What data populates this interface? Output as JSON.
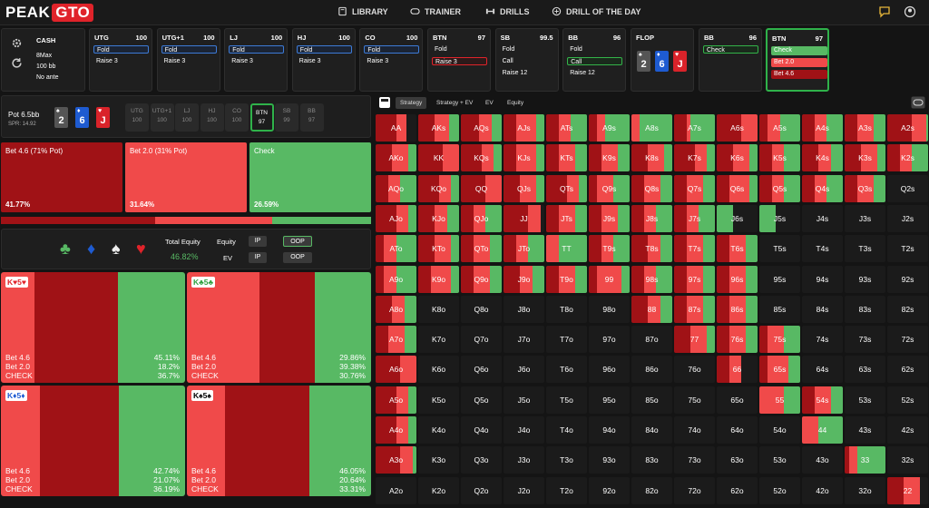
{
  "brand": {
    "part1": "PEAK",
    "part2": "GTO",
    "accent": "#e0232a"
  },
  "nav": [
    {
      "label": "LIBRARY",
      "icon": "book-icon"
    },
    {
      "label": "TRAINER",
      "icon": "gamepad-icon"
    },
    {
      "label": "DRILLS",
      "icon": "dumbbell-icon"
    },
    {
      "label": "DRILL OF THE DAY",
      "icon": "plus-circle-icon"
    }
  ],
  "side": {
    "game": "CASH",
    "table": "8Max",
    "stack": "100 bb",
    "ante": "No ante"
  },
  "seats": [
    {
      "name": "UTG",
      "stack": "100",
      "a1": "Fold",
      "a1style": "blue",
      "a2": "Raise 3"
    },
    {
      "name": "UTG+1",
      "stack": "100",
      "a1": "Fold",
      "a1style": "blue",
      "a2": "Raise 3"
    },
    {
      "name": "LJ",
      "stack": "100",
      "a1": "Fold",
      "a1style": "blue",
      "a2": "Raise 3"
    },
    {
      "name": "HJ",
      "stack": "100",
      "a1": "Fold",
      "a1style": "blue",
      "a2": "Raise 3"
    },
    {
      "name": "CO",
      "stack": "100",
      "a1": "Fold",
      "a1style": "blue",
      "a2": "Raise 3"
    },
    {
      "name": "BTN",
      "stack": "97",
      "a1": "Fold",
      "a1style": "none",
      "a2": "Raise 3",
      "a2style": "red"
    },
    {
      "name": "SB",
      "stack": "99.5",
      "a1": "Fold",
      "a1style": "none",
      "a2": "Call",
      "a3": "Raise 12"
    },
    {
      "name": "BB",
      "stack": "96",
      "a1": "Fold",
      "a1style": "none",
      "a2": "Call",
      "a2style": "green",
      "a3": "Raise 12"
    }
  ],
  "flop": {
    "label": "FLOP",
    "cards": [
      {
        "rank": "2",
        "suit": "♠",
        "color": "#555"
      },
      {
        "rank": "6",
        "suit": "♦",
        "color": "#1e5bd1"
      },
      {
        "rank": "J",
        "suit": "♥",
        "color": "#d9232a"
      }
    ]
  },
  "bbnode": {
    "name": "BB",
    "stack": "96",
    "action": "Check"
  },
  "btnnode": {
    "name": "BTN",
    "stack": "97",
    "actions": [
      "Check",
      "Bet 2.0",
      "Bet 4.6"
    ]
  },
  "pot": {
    "label": "Pot",
    "value": "6.5bb",
    "spr": "SPR: 14.92"
  },
  "miniseats": [
    {
      "name": "UTG",
      "stack": "100"
    },
    {
      "name": "UTG+1",
      "stack": "100"
    },
    {
      "name": "LJ",
      "stack": "100"
    },
    {
      "name": "HJ",
      "stack": "100"
    },
    {
      "name": "CO",
      "stack": "100"
    },
    {
      "name": "BTN",
      "stack": "97"
    },
    {
      "name": "SB",
      "stack": "99"
    },
    {
      "name": "BB",
      "stack": "97"
    }
  ],
  "strategy": [
    {
      "label": "Bet 4.6 (71% Pot)",
      "pct": "41.77%",
      "freq": 0.4177,
      "color": "#a01216"
    },
    {
      "label": "Bet 2.0 (31% Pot)",
      "pct": "31.64%",
      "freq": 0.3164,
      "color": "#f04a4a"
    },
    {
      "label": "Check",
      "pct": "26.59%",
      "freq": 0.2659,
      "color": "#58b964"
    }
  ],
  "equity": {
    "total_label": "Total Equity",
    "total": "46.82%",
    "equity_label": "Equity",
    "ev_label": "EV",
    "ip": "IP",
    "oop": "OOP"
  },
  "combos": [
    {
      "cards": "K♥5♥",
      "lines": [
        "Bet 4.6",
        "Bet 2.0",
        "CHECK"
      ],
      "vals": [
        "45.11%",
        "18.2%",
        "36.7%"
      ],
      "f": [
        0.4511,
        0.182,
        0.367
      ]
    },
    {
      "cards": "K♣5♣",
      "lines": [
        "Bet 4.6",
        "Bet 2.0",
        "CHECK"
      ],
      "vals": [
        "29.86%",
        "39.38%",
        "30.76%"
      ],
      "f": [
        0.2986,
        0.3938,
        0.3076
      ]
    },
    {
      "cards": "K♦5♦",
      "lines": [
        "Bet 4.6",
        "Bet 2.0",
        "CHECK"
      ],
      "vals": [
        "42.74%",
        "21.07%",
        "36.19%"
      ],
      "f": [
        0.4274,
        0.2107,
        0.3619
      ]
    },
    {
      "cards": "K♠5♠",
      "lines": [
        "Bet 4.6",
        "Bet 2.0",
        "CHECK"
      ],
      "vals": [
        "46.05%",
        "20.64%",
        "33.31%"
      ],
      "f": [
        0.4605,
        0.2064,
        0.3331
      ]
    }
  ],
  "tabs": [
    "Strategy",
    "Strategy + EV",
    "EV",
    "Equity"
  ],
  "matrix": {
    "ranks": [
      "A",
      "K",
      "Q",
      "J",
      "T",
      "9",
      "8",
      "7",
      "6",
      "5",
      "4",
      "3",
      "2"
    ],
    "mix": {
      "AA": [
        0.5,
        0.25,
        0
      ],
      "AKs": [
        0.4,
        0.35,
        0.25
      ],
      "AQs": [
        0.45,
        0.3,
        0.25
      ],
      "AJs": [
        0.3,
        0.5,
        0.2
      ],
      "ATs": [
        0.3,
        0.3,
        0.4
      ],
      "A9s": [
        0.2,
        0.2,
        0.6
      ],
      "A8s": [
        0,
        0.2,
        0.8
      ],
      "A7s": [
        0.3,
        0.1,
        0.6
      ],
      "A6s": [
        0.6,
        0.4,
        0
      ],
      "A5s": [
        0.2,
        0.3,
        0.5
      ],
      "A4s": [
        0.3,
        0.3,
        0.4
      ],
      "A3s": [
        0.3,
        0.4,
        0.3
      ],
      "A2s": [
        0.6,
        0.35,
        0.05
      ],
      "AKo": [
        0.4,
        0.4,
        0.2
      ],
      "KK": [
        0.6,
        0.4,
        0
      ],
      "KQs": [
        0.5,
        0.3,
        0.2
      ],
      "KJs": [
        0.3,
        0.5,
        0.2
      ],
      "KTs": [
        0.3,
        0.4,
        0.3
      ],
      "K9s": [
        0.3,
        0.4,
        0.3
      ],
      "K8s": [
        0.4,
        0.4,
        0.2
      ],
      "K7s": [
        0.5,
        0.3,
        0.2
      ],
      "K6s": [
        0.4,
        0.4,
        0.2
      ],
      "K5s": [
        0.3,
        0.3,
        0.4
      ],
      "K4s": [
        0.4,
        0.3,
        0.3
      ],
      "K3s": [
        0.4,
        0.4,
        0.2
      ],
      "K2s": [
        0.3,
        0.3,
        0.4
      ],
      "AQo": [
        0.3,
        0.3,
        0.4
      ],
      "KQo": [
        0.5,
        0.3,
        0.2
      ],
      "QQ": [
        0.6,
        0.4,
        0
      ],
      "QJs": [
        0.4,
        0.4,
        0.2
      ],
      "QTs": [
        0.5,
        0.3,
        0.2
      ],
      "Q9s": [
        0.2,
        0.4,
        0.4
      ],
      "Q8s": [
        0.3,
        0.4,
        0.3
      ],
      "Q7s": [
        0.3,
        0.4,
        0.3
      ],
      "Q6s": [
        0.3,
        0.5,
        0.2
      ],
      "Q5s": [
        0.3,
        0.3,
        0.4
      ],
      "Q4s": [
        0.3,
        0.3,
        0.4
      ],
      "Q3s": [
        0.3,
        0.4,
        0.3
      ],
      "AJo": [
        0.5,
        0.3,
        0.2
      ],
      "KJo": [
        0.4,
        0.3,
        0.3
      ],
      "QJo": [
        0.3,
        0.3,
        0.4
      ],
      "JJ": [
        0.6,
        0.3,
        0
      ],
      "JTs": [
        0.3,
        0.4,
        0.3
      ],
      "J9s": [
        0.3,
        0.4,
        0.3
      ],
      "J8s": [
        0.3,
        0.3,
        0.4
      ],
      "J7s": [
        0.3,
        0.3,
        0.4
      ],
      "J6s": [
        0,
        0,
        0.4
      ],
      "J5s": [
        0,
        0,
        0.4
      ],
      "ATo": [
        0.2,
        0.3,
        0.5
      ],
      "KTo": [
        0.4,
        0.4,
        0.2
      ],
      "QTo": [
        0.3,
        0.4,
        0.3
      ],
      "JTo": [
        0.3,
        0.3,
        0.4
      ],
      "TT": [
        0,
        0.3,
        0.7
      ],
      "T9s": [
        0.3,
        0.3,
        0.4
      ],
      "T8s": [
        0.4,
        0.3,
        0.3
      ],
      "T7s": [
        0.3,
        0.4,
        0.3
      ],
      "T6s": [
        0.3,
        0.4,
        0.3
      ],
      "A9o": [
        0.2,
        0.3,
        0.5
      ],
      "K9o": [
        0.3,
        0.5,
        0.2
      ],
      "Q9o": [
        0.3,
        0.4,
        0.3
      ],
      "J9o": [
        0.4,
        0.3,
        0.3
      ],
      "T9o": [
        0.3,
        0.4,
        0.3
      ],
      "99": [
        0.2,
        0.6,
        0.2
      ],
      "98s": [
        0.3,
        0.3,
        0.4
      ],
      "97s": [
        0.3,
        0.4,
        0.3
      ],
      "96s": [
        0.3,
        0.4,
        0.3
      ],
      "A8o": [
        0.4,
        0.3,
        0.3
      ],
      "K8o": [
        0,
        0,
        0
      ],
      "87s": [
        0.3,
        0.4,
        0.3
      ],
      "88": [
        0.4,
        0.3,
        0.3
      ],
      "86s": [
        0.3,
        0.4,
        0.3
      ],
      "A7o": [
        0.3,
        0.4,
        0.3
      ],
      "77": [
        0.4,
        0.4,
        0.2
      ],
      "76s": [
        0.3,
        0.4,
        0.3
      ],
      "75s": [
        0.2,
        0.4,
        0.4
      ],
      "A6o": [
        0.6,
        0.4,
        0
      ],
      "66": [
        0.3,
        0.3,
        0
      ],
      "65s": [
        0.2,
        0.5,
        0.3
      ],
      "A5o": [
        0.5,
        0.3,
        0.2
      ],
      "55": [
        0,
        0.6,
        0.4
      ],
      "54s": [
        0.3,
        0.4,
        0.3
      ],
      "A4o": [
        0.5,
        0.3,
        0.2
      ],
      "44": [
        0,
        0.4,
        0.6
      ],
      "A3o": [
        0.6,
        0.3,
        0.1
      ],
      "33": [
        0.1,
        0.2,
        0.7
      ],
      "22": [
        0.4,
        0.4,
        0
      ]
    }
  },
  "colors": {
    "bet_big": "#a01216",
    "bet_small": "#f04a4a",
    "check": "#58b964",
    "empty": "#1b1b1b"
  }
}
